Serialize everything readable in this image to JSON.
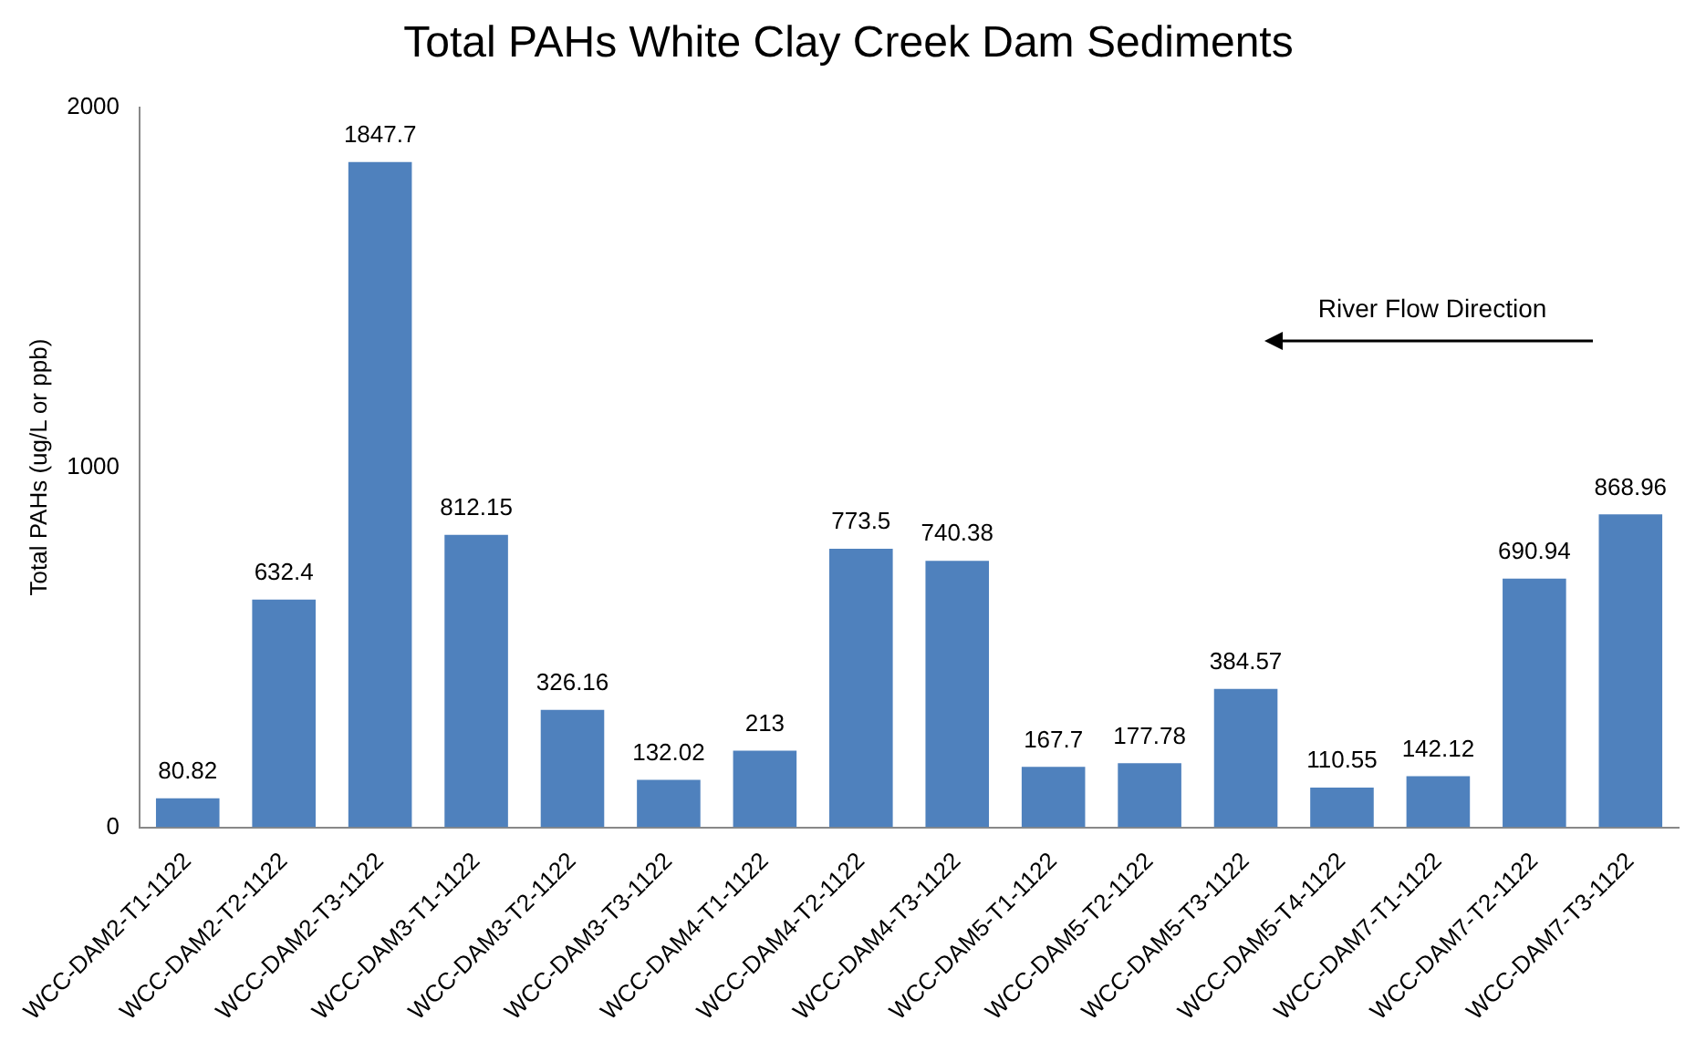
{
  "chart_data": {
    "type": "bar",
    "title": "Total PAHs White Clay Creek Dam Sediments",
    "ylabel": "Total PAHs (ug/L or ppb)",
    "categories": [
      "WCC-DAM2-T1-1122",
      "WCC-DAM2-T2-1122",
      "WCC-DAM2-T3-1122",
      "WCC-DAM3-T1-1122",
      "WCC-DAM3-T2-1122",
      "WCC-DAM3-T3-1122",
      "WCC-DAM4-T1-1122",
      "WCC-DAM4-T2-1122",
      "WCC-DAM4-T3-1122",
      "WCC-DAM5-T1-1122",
      "WCC-DAM5-T2-1122",
      "WCC-DAM5-T3-1122",
      "WCC-DAM5-T4-1122",
      "WCC-DAM7-T1-1122",
      "WCC-DAM7-T2-1122",
      "WCC-DAM7-T3-1122"
    ],
    "values": [
      80.82,
      632.4,
      1847.7,
      812.15,
      326.16,
      132.02,
      213,
      773.5,
      740.38,
      167.7,
      177.78,
      384.57,
      110.55,
      142.12,
      690.94,
      868.96
    ],
    "color": "#4f81bd",
    "ylim": [
      0,
      2000
    ],
    "yticks": [
      0,
      1000,
      2000
    ],
    "grid": false,
    "legend": false,
    "data_labels": true,
    "annotations": [
      "River Flow Direction"
    ]
  }
}
